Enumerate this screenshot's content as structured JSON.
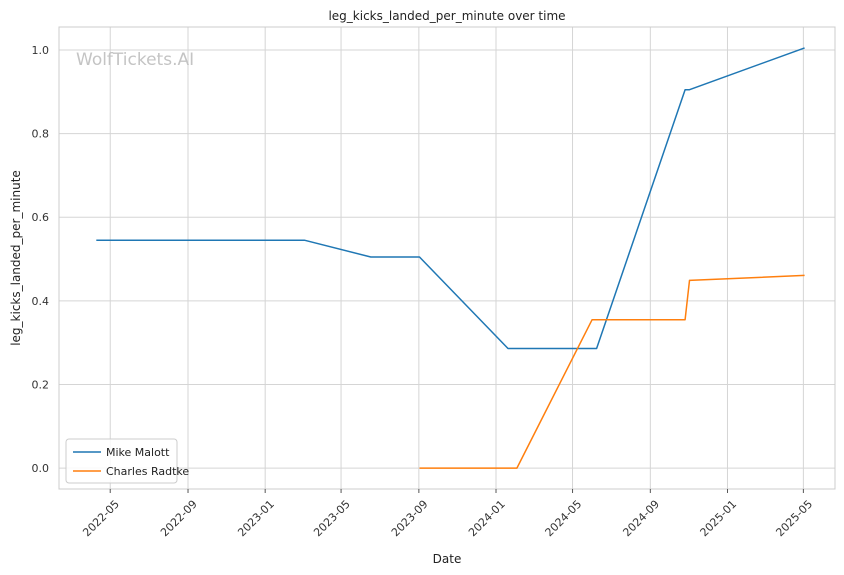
{
  "watermark": "WolfTickets.AI",
  "chart_data": {
    "type": "line",
    "title": "leg_kicks_landed_per_minute over time",
    "xlabel": "Date",
    "ylabel": "leg_kicks_landed_per_minute",
    "x_ticks": [
      "2022-05",
      "2022-09",
      "2023-01",
      "2023-05",
      "2023-09",
      "2024-01",
      "2024-05",
      "2024-09",
      "2025-01",
      "2025-05"
    ],
    "y_ticks": [
      "0.0",
      "0.2",
      "0.4",
      "0.6",
      "0.8",
      "1.0"
    ],
    "xlim": [
      "2022-02-09",
      "2025-06-20"
    ],
    "ylim": [
      -0.05,
      1.055
    ],
    "grid": true,
    "legend_position": "lower-left",
    "series": [
      {
        "name": "Mike Malott",
        "color": "#1f77b4",
        "points": [
          {
            "x": "2022-04-09",
            "y": 0.545
          },
          {
            "x": "2023-03-04",
            "y": 0.545
          },
          {
            "x": "2023-06-17",
            "y": 0.505
          },
          {
            "x": "2023-09-02",
            "y": 0.505
          },
          {
            "x": "2024-01-20",
            "y": 0.286
          },
          {
            "x": "2024-06-08",
            "y": 0.286
          },
          {
            "x": "2024-10-26",
            "y": 0.905
          },
          {
            "x": "2024-11-02",
            "y": 0.905
          },
          {
            "x": "2025-05-03",
            "y": 1.005
          }
        ]
      },
      {
        "name": "Charles Radtke",
        "color": "#ff7f0e",
        "points": [
          {
            "x": "2023-09-02",
            "y": 0.0
          },
          {
            "x": "2024-02-03",
            "y": 0.0
          },
          {
            "x": "2024-06-01",
            "y": 0.355
          },
          {
            "x": "2024-10-26",
            "y": 0.355
          },
          {
            "x": "2024-11-02",
            "y": 0.449
          },
          {
            "x": "2025-05-03",
            "y": 0.461
          }
        ]
      }
    ]
  }
}
